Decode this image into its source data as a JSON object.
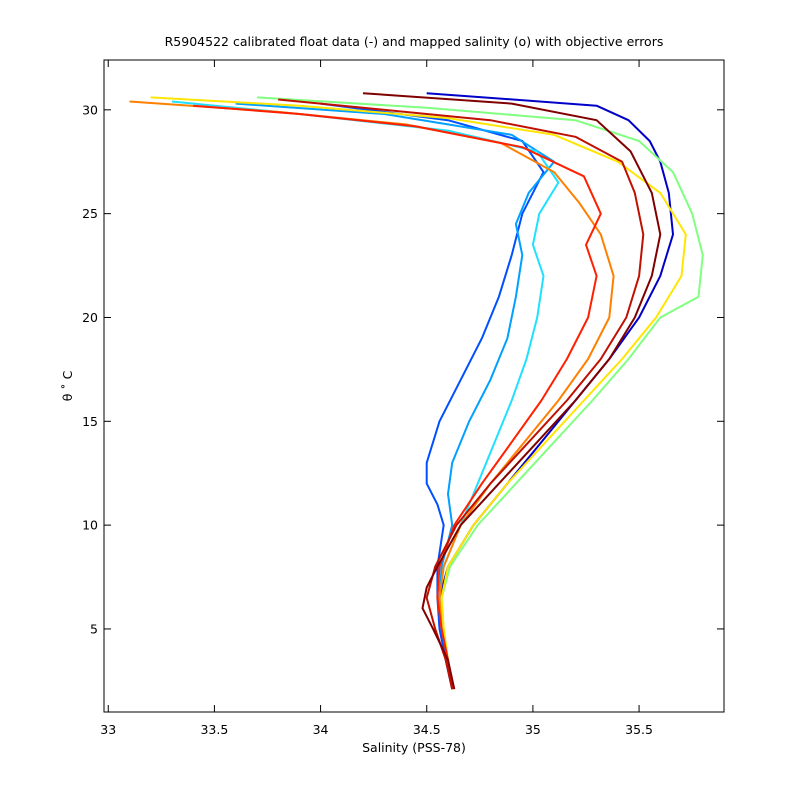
{
  "chart_data": {
    "type": "line",
    "title": "R5904522 calibrated float data (-) and mapped salinity (o) with objective errors",
    "xlabel": "Salinity (PSS-78)",
    "ylabel": "θ ˚ C",
    "xlim": [
      32.98,
      35.9
    ],
    "ylim": [
      1.0,
      32.4
    ],
    "xticks": [
      "33",
      "33.5",
      "34",
      "34.5",
      "35",
      "35.5"
    ],
    "yticks": [
      "5",
      "10",
      "15",
      "20",
      "25",
      "30"
    ],
    "grid": false,
    "legend": "none",
    "colormap": [
      "#00008f",
      "#0000ff",
      "#0080ff",
      "#00ffff",
      "#80ff80",
      "#ffff00",
      "#ff8000",
      "#ff0000",
      "#800000"
    ],
    "series": [
      {
        "color": "#0000c8",
        "theta": [
          2.1,
          3.5,
          5,
          6.5,
          8,
          10,
          12,
          14,
          16,
          18,
          20,
          22,
          24,
          26,
          27.5,
          28.5,
          29.5,
          30.2,
          30.8
        ],
        "salinity": [
          34.62,
          34.59,
          34.57,
          34.56,
          34.6,
          34.72,
          34.88,
          35.04,
          35.2,
          35.36,
          35.5,
          35.6,
          35.66,
          35.64,
          35.6,
          35.55,
          35.45,
          35.3,
          34.5
        ]
      },
      {
        "color": "#0050ff",
        "theta": [
          2.1,
          3.5,
          5,
          6.5,
          8,
          10,
          11,
          12,
          13,
          15,
          17,
          19,
          21,
          23,
          25,
          27,
          28.5,
          29.5,
          30.3
        ],
        "salinity": [
          34.62,
          34.59,
          34.56,
          34.55,
          34.55,
          34.58,
          34.55,
          34.5,
          34.5,
          34.56,
          34.66,
          34.76,
          34.84,
          34.9,
          34.95,
          35.05,
          34.95,
          34.6,
          34.0
        ]
      },
      {
        "color": "#00a0ff",
        "theta": [
          2.1,
          3.5,
          5,
          6.5,
          8,
          10,
          11.5,
          13,
          15,
          17,
          19,
          21,
          23,
          24.5,
          26,
          27.5,
          28.8,
          29.8,
          30.3
        ],
        "salinity": [
          34.62,
          34.6,
          34.57,
          34.56,
          34.57,
          34.62,
          34.6,
          34.62,
          34.7,
          34.8,
          34.88,
          34.92,
          34.95,
          34.92,
          34.98,
          35.1,
          34.9,
          34.3,
          33.6
        ]
      },
      {
        "color": "#20e0ff",
        "theta": [
          2.1,
          3.5,
          5,
          6.5,
          8,
          10,
          12,
          14,
          16,
          18,
          20,
          22,
          23.5,
          25,
          26.5,
          28,
          29,
          29.8,
          30.4
        ],
        "salinity": [
          34.62,
          34.6,
          34.57,
          34.56,
          34.58,
          34.66,
          34.74,
          34.82,
          34.9,
          34.97,
          35.02,
          35.05,
          35.0,
          35.03,
          35.12,
          35.02,
          34.6,
          33.9,
          33.3
        ]
      },
      {
        "color": "#80ff80",
        "theta": [
          2.1,
          3.5,
          5,
          6.5,
          8,
          10,
          12,
          14,
          16,
          18,
          20,
          21,
          23,
          25,
          27,
          28.5,
          29.5,
          30.1,
          30.6
        ],
        "salinity": [
          34.62,
          34.6,
          34.58,
          34.57,
          34.61,
          34.74,
          34.92,
          35.1,
          35.28,
          35.45,
          35.6,
          35.78,
          35.8,
          35.75,
          35.66,
          35.5,
          35.2,
          34.5,
          33.7
        ]
      },
      {
        "color": "#ffe600",
        "theta": [
          2.1,
          3.5,
          5,
          6.5,
          8,
          10,
          12,
          14,
          16,
          18,
          20,
          22,
          24,
          26,
          27.5,
          28.8,
          29.6,
          30.2,
          30.6
        ],
        "salinity": [
          34.62,
          34.6,
          34.58,
          34.57,
          34.6,
          34.72,
          34.88,
          35.06,
          35.24,
          35.42,
          35.58,
          35.7,
          35.72,
          35.6,
          35.4,
          35.1,
          34.6,
          33.9,
          33.2
        ]
      },
      {
        "color": "#ff8000",
        "theta": [
          2.1,
          3.5,
          5,
          6.5,
          8,
          10,
          12,
          14,
          16,
          18,
          20,
          22,
          24,
          25.5,
          27,
          28.4,
          29.3,
          29.9,
          30.4
        ],
        "salinity": [
          34.62,
          34.6,
          34.57,
          34.56,
          34.58,
          34.66,
          34.8,
          34.96,
          35.12,
          35.26,
          35.36,
          35.38,
          35.32,
          35.22,
          35.1,
          34.85,
          34.4,
          33.8,
          33.1
        ]
      },
      {
        "color": "#ff2000",
        "theta": [
          2.1,
          3.5,
          5,
          6.5,
          8,
          10,
          12,
          14,
          16,
          18,
          20,
          22,
          23.5,
          25,
          26.8,
          28.2,
          29.2,
          29.8,
          30.2
        ],
        "salinity": [
          34.62,
          34.6,
          34.57,
          34.55,
          34.56,
          34.63,
          34.76,
          34.9,
          35.04,
          35.16,
          35.26,
          35.3,
          35.25,
          35.32,
          35.24,
          34.95,
          34.45,
          33.9,
          33.4
        ]
      },
      {
        "color": "#c01000",
        "theta": [
          2.1,
          3.5,
          5,
          6.5,
          8,
          10,
          12,
          14,
          16,
          18,
          20,
          22,
          24,
          26,
          27.5,
          28.7,
          29.5,
          30.1,
          30.5
        ],
        "salinity": [
          34.62,
          34.59,
          34.54,
          34.5,
          34.54,
          34.64,
          34.8,
          34.98,
          35.16,
          35.32,
          35.44,
          35.5,
          35.52,
          35.48,
          35.42,
          35.2,
          34.8,
          34.2,
          33.8
        ]
      },
      {
        "color": "#800000",
        "theta": [
          2.1,
          3.5,
          5,
          6,
          7,
          8,
          10,
          12,
          14,
          16,
          18,
          20,
          22,
          24,
          26,
          28,
          29.5,
          30.3,
          30.8
        ],
        "salinity": [
          34.63,
          34.6,
          34.53,
          34.48,
          34.5,
          34.55,
          34.66,
          34.84,
          35.02,
          35.2,
          35.36,
          35.48,
          35.56,
          35.6,
          35.56,
          35.46,
          35.3,
          34.9,
          34.2
        ]
      }
    ]
  }
}
